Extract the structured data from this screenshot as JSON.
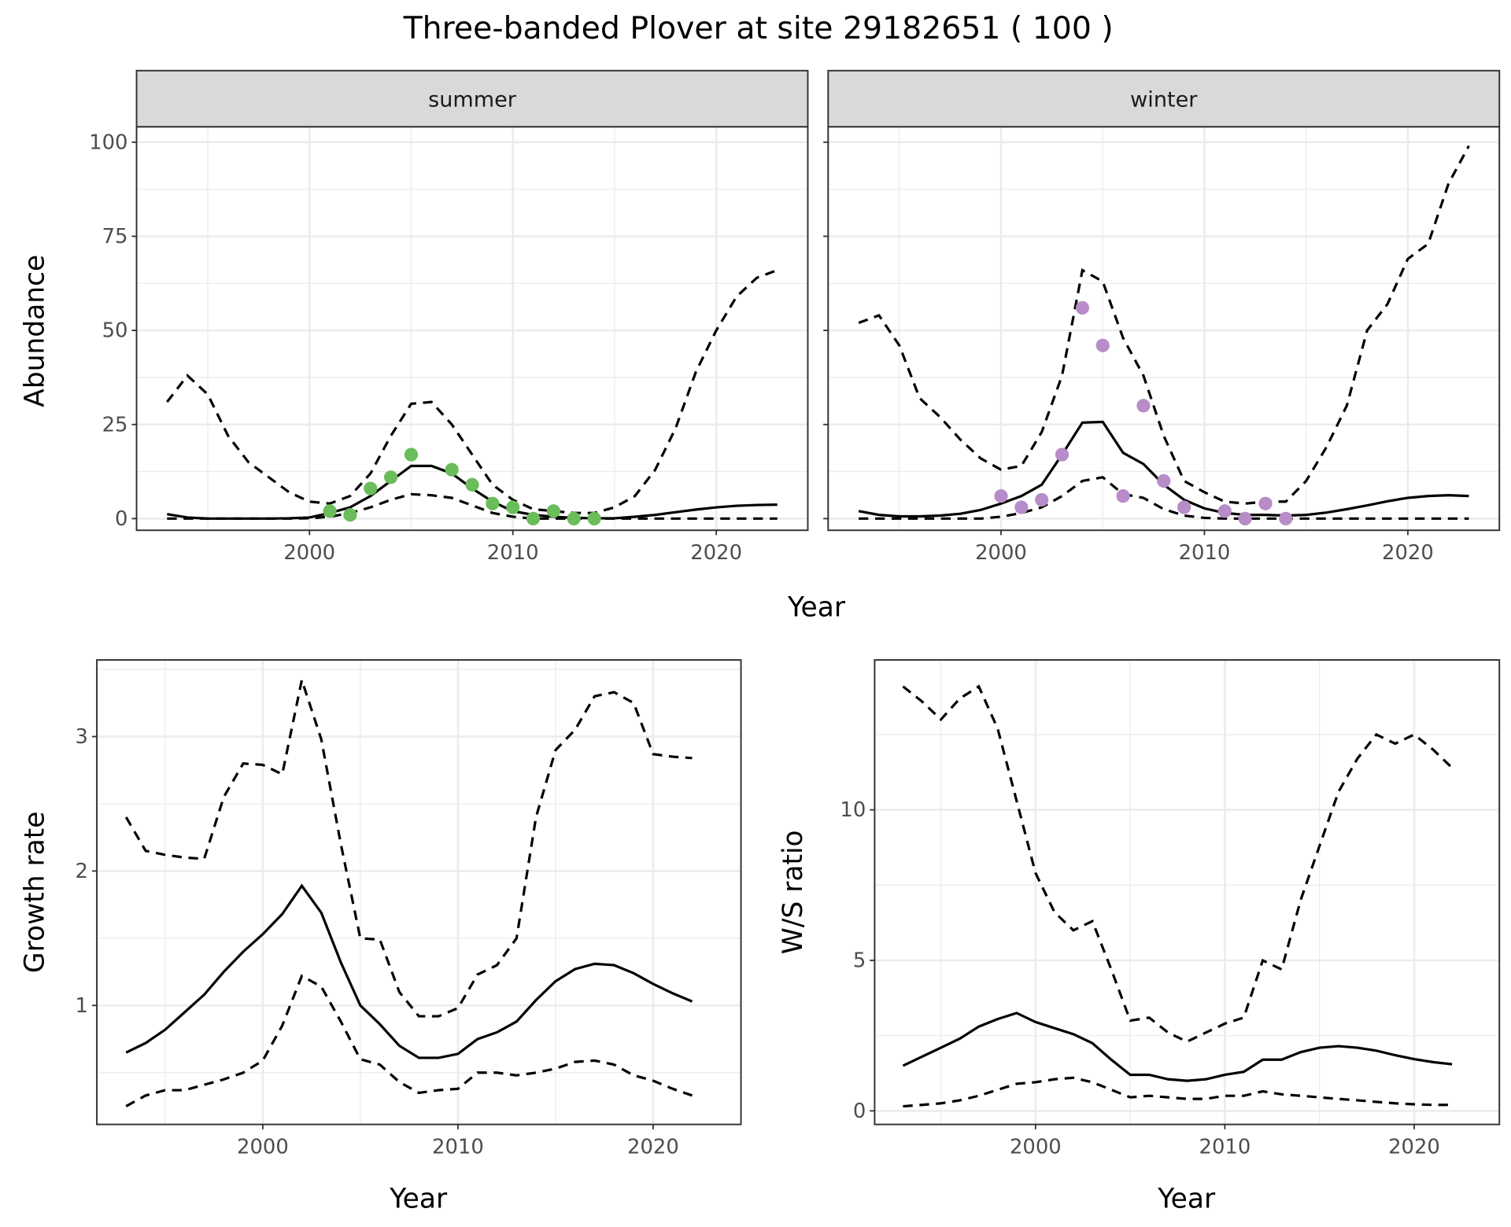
{
  "title": "Three-banded Plover at site 29182651 ( 100 )",
  "chart_data": [
    {
      "type": "line",
      "name": "abundance",
      "xlabel": "Year",
      "ylabel": "Abundance",
      "xlim": [
        1991.5,
        2024.5
      ],
      "ylim": [
        -3.1,
        104.1
      ],
      "xticks": [
        2000,
        2010,
        2020
      ],
      "yticks": [
        0,
        25,
        50,
        75,
        100
      ],
      "grid": true,
      "panels": [
        {
          "strip": "summer",
          "point_color": "#6abd5a",
          "years": [
            1993,
            1994,
            1995,
            1996,
            1997,
            1998,
            1999,
            2000,
            2001,
            2002,
            2003,
            2004,
            2005,
            2006,
            2007,
            2008,
            2009,
            2010,
            2011,
            2012,
            2013,
            2014,
            2015,
            2016,
            2017,
            2018,
            2019,
            2020,
            2021,
            2022,
            2023
          ],
          "mean": [
            1.2,
            0.3,
            0,
            0,
            0,
            0,
            0.1,
            0.3,
            1.5,
            3,
            6,
            10,
            14,
            14,
            12,
            8,
            4.5,
            2,
            1,
            0.5,
            0.2,
            0.1,
            0.1,
            0.5,
            1,
            1.7,
            2.4,
            3,
            3.4,
            3.6,
            3.7
          ],
          "lower": [
            0,
            0,
            0,
            0,
            0,
            0,
            0,
            0.1,
            0.5,
            1.5,
            3,
            5,
            6.5,
            6.2,
            5.5,
            3.5,
            1.5,
            0.5,
            0,
            0,
            0,
            0,
            0,
            0,
            0,
            0,
            0,
            0,
            0,
            0,
            0
          ],
          "upper": [
            31,
            38,
            33,
            22,
            15,
            11,
            7,
            4.5,
            4,
            6,
            12,
            22,
            30.5,
            31,
            25,
            17,
            9,
            5,
            2.5,
            2,
            1.5,
            1.5,
            3,
            6,
            13,
            24,
            39,
            50,
            59,
            64,
            66
          ],
          "observed": {
            "years": [
              2001,
              2002,
              2003,
              2004,
              2005,
              2007,
              2008,
              2009,
              2010,
              2011,
              2012,
              2013,
              2014
            ],
            "values": [
              2,
              1,
              8,
              11,
              17,
              13,
              9,
              4,
              3,
              0,
              2,
              0,
              0
            ]
          }
        },
        {
          "strip": "winter",
          "point_color": "#b88cc8",
          "years": [
            1993,
            1994,
            1995,
            1996,
            1997,
            1998,
            1999,
            2000,
            2001,
            2002,
            2003,
            2004,
            2005,
            2006,
            2007,
            2008,
            2009,
            2010,
            2011,
            2012,
            2013,
            2014,
            2015,
            2016,
            2017,
            2018,
            2019,
            2020,
            2021,
            2022,
            2023
          ],
          "mean": [
            2,
            1,
            0.6,
            0.6,
            0.8,
            1.3,
            2.3,
            4,
            6,
            9,
            17,
            25.5,
            25.7,
            17.5,
            14.5,
            9,
            5,
            2.7,
            1.5,
            1,
            1,
            0.8,
            1,
            1.6,
            2.5,
            3.5,
            4.6,
            5.5,
            6,
            6.2,
            6
          ],
          "lower": [
            0,
            0,
            0,
            0,
            0,
            0,
            0,
            0.5,
            1.5,
            3,
            6,
            10,
            11,
            6.5,
            5.5,
            2.5,
            0.8,
            0.2,
            0,
            0,
            0,
            0,
            0,
            0,
            0,
            0,
            0,
            0,
            0,
            0,
            0
          ],
          "upper": [
            52,
            54,
            46,
            32,
            27,
            21,
            16,
            13,
            14,
            23,
            38,
            66,
            63,
            48,
            38,
            22,
            10,
            7,
            4.5,
            4,
            4.5,
            4.5,
            10,
            19,
            30,
            50,
            57,
            69,
            73,
            89,
            99
          ],
          "observed": {
            "years": [
              2000,
              2001,
              2002,
              2003,
              2004,
              2005,
              2006,
              2007,
              2008,
              2009,
              2011,
              2012,
              2013,
              2014
            ],
            "values": [
              6,
              3,
              5,
              17,
              56,
              46,
              6,
              30,
              10,
              3,
              2,
              0,
              4,
              0
            ]
          }
        }
      ]
    },
    {
      "type": "line",
      "name": "growth-rate",
      "xlabel": "Year",
      "ylabel": "Growth rate",
      "xlim": [
        1991.5,
        2024.5
      ],
      "ylim": [
        0.115,
        3.57
      ],
      "xticks": [
        2000,
        2010,
        2020
      ],
      "yticks": [
        1,
        2,
        3
      ],
      "grid": true,
      "years": [
        1993,
        1994,
        1995,
        1996,
        1997,
        1998,
        1999,
        2000,
        2001,
        2002,
        2003,
        2004,
        2005,
        2006,
        2007,
        2008,
        2009,
        2010,
        2011,
        2012,
        2013,
        2014,
        2015,
        2016,
        2017,
        2018,
        2019,
        2020,
        2021,
        2022
      ],
      "mean": [
        0.65,
        0.72,
        0.82,
        0.95,
        1.08,
        1.25,
        1.4,
        1.53,
        1.68,
        1.89,
        1.69,
        1.32,
        1.0,
        0.86,
        0.7,
        0.61,
        0.61,
        0.64,
        0.75,
        0.8,
        0.88,
        1.04,
        1.18,
        1.27,
        1.31,
        1.3,
        1.24,
        1.16,
        1.09,
        1.03
      ],
      "upper": [
        2.4,
        2.15,
        2.12,
        2.1,
        2.09,
        2.55,
        2.8,
        2.79,
        2.72,
        3.42,
        2.98,
        2.2,
        1.5,
        1.49,
        1.1,
        0.92,
        0.92,
        0.98,
        1.23,
        1.3,
        1.5,
        2.4,
        2.9,
        3.05,
        3.3,
        3.33,
        3.25,
        2.87,
        2.85,
        2.84
      ],
      "lower": [
        0.25,
        0.33,
        0.37,
        0.37,
        0.41,
        0.45,
        0.5,
        0.59,
        0.85,
        1.22,
        1.14,
        0.88,
        0.6,
        0.56,
        0.43,
        0.35,
        0.37,
        0.38,
        0.5,
        0.5,
        0.48,
        0.5,
        0.53,
        0.58,
        0.59,
        0.56,
        0.48,
        0.44,
        0.38,
        0.33
      ]
    },
    {
      "type": "line",
      "name": "ws-ratio",
      "xlabel": "Year",
      "ylabel": "W/S ratio",
      "xlim": [
        1991.5,
        2024.5
      ],
      "ylim": [
        -0.45,
        14.98
      ],
      "xticks": [
        2000,
        2010,
        2020
      ],
      "yticks": [
        0,
        5,
        10
      ],
      "grid": true,
      "years": [
        1993,
        1994,
        1995,
        1996,
        1997,
        1998,
        1999,
        2000,
        2001,
        2002,
        2003,
        2004,
        2005,
        2006,
        2007,
        2008,
        2009,
        2010,
        2011,
        2012,
        2013,
        2014,
        2015,
        2016,
        2017,
        2018,
        2019,
        2020,
        2021,
        2022
      ],
      "mean": [
        1.5,
        1.8,
        2.1,
        2.4,
        2.8,
        3.05,
        3.25,
        2.95,
        2.75,
        2.55,
        2.25,
        1.7,
        1.2,
        1.2,
        1.05,
        1.0,
        1.05,
        1.2,
        1.3,
        1.7,
        1.7,
        1.95,
        2.1,
        2.15,
        2.1,
        2.0,
        1.85,
        1.72,
        1.62,
        1.55
      ],
      "upper": [
        14.1,
        13.6,
        13.0,
        13.7,
        14.1,
        12.7,
        10.3,
        7.9,
        6.6,
        6.0,
        6.3,
        4.7,
        3.0,
        3.1,
        2.6,
        2.3,
        2.6,
        2.9,
        3.1,
        5.0,
        4.7,
        7.0,
        8.8,
        10.6,
        11.7,
        12.5,
        12.2,
        12.5,
        12.0,
        11.4
      ],
      "lower": [
        0.15,
        0.2,
        0.25,
        0.35,
        0.5,
        0.7,
        0.9,
        0.95,
        1.05,
        1.1,
        0.95,
        0.7,
        0.45,
        0.5,
        0.45,
        0.4,
        0.4,
        0.5,
        0.5,
        0.65,
        0.55,
        0.5,
        0.45,
        0.4,
        0.35,
        0.3,
        0.25,
        0.22,
        0.2,
        0.2
      ]
    }
  ]
}
